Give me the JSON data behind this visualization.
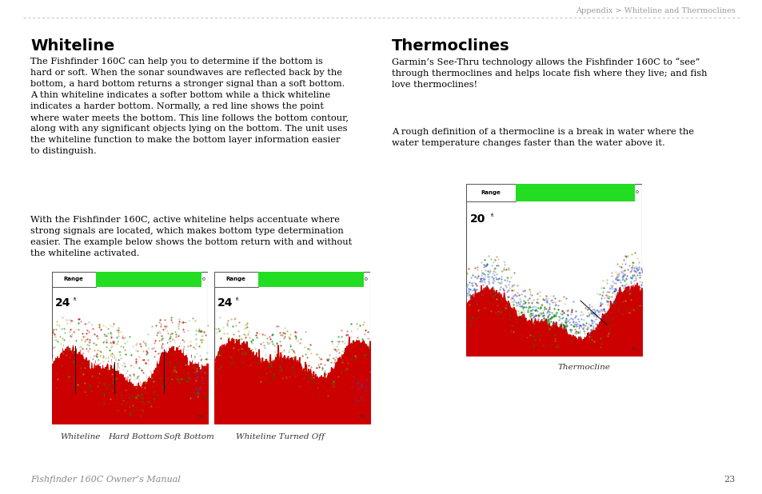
{
  "page_title": "Appendix > Whiteline and Thermoclines",
  "page_number": "23",
  "footer_text": "Fishfinder 160C Owner’s Manual",
  "left_heading": "Whiteline",
  "left_body1": "The Fishfinder 160C can help you to determine if the bottom is\nhard or soft. When the sonar soundwaves are reflected back by the\nbottom, a hard bottom returns a stronger signal than a soft bottom.\nA thin whiteline indicates a softer bottom while a thick whiteline\nindicates a harder bottom. Normally, a red line shows the point\nwhere water meets the bottom. This line follows the bottom contour,\nalong with any significant objects lying on the bottom. The unit uses\nthe whiteline function to make the bottom layer information easier\nto distinguish.",
  "left_body2": "With the Fishfinder 160C, active whiteline helps accentuate where\nstrong signals are located, which makes bottom type determination\neasier. The example below shows the bottom return with and without\nthe whiteline activated.",
  "caption_left1": "Whiteline",
  "caption_left2": "Hard Bottom",
  "caption_left3": "Soft Bottom",
  "caption_right1": "Whiteline Turned Off",
  "right_heading": "Thermoclines",
  "right_body1": "Garmin’s See-Thru technology allows the Fishfinder 160C to “see”\nthrough thermoclines and helps locate fish where they live; and fish\nlove thermoclines!",
  "right_body2": "A rough definition of a thermocline is a break in water where the\nwater temperature changes faster than the water above it.",
  "caption_thermo": "Thermocline",
  "bg_color": "#ffffff",
  "text_color": "#000000",
  "header_color": "#999999",
  "heading_font_size": 14,
  "body_font_size": 8.2,
  "caption_font_size": 7.5,
  "header_font_size": 7.0,
  "footer_font_size": 8.0
}
